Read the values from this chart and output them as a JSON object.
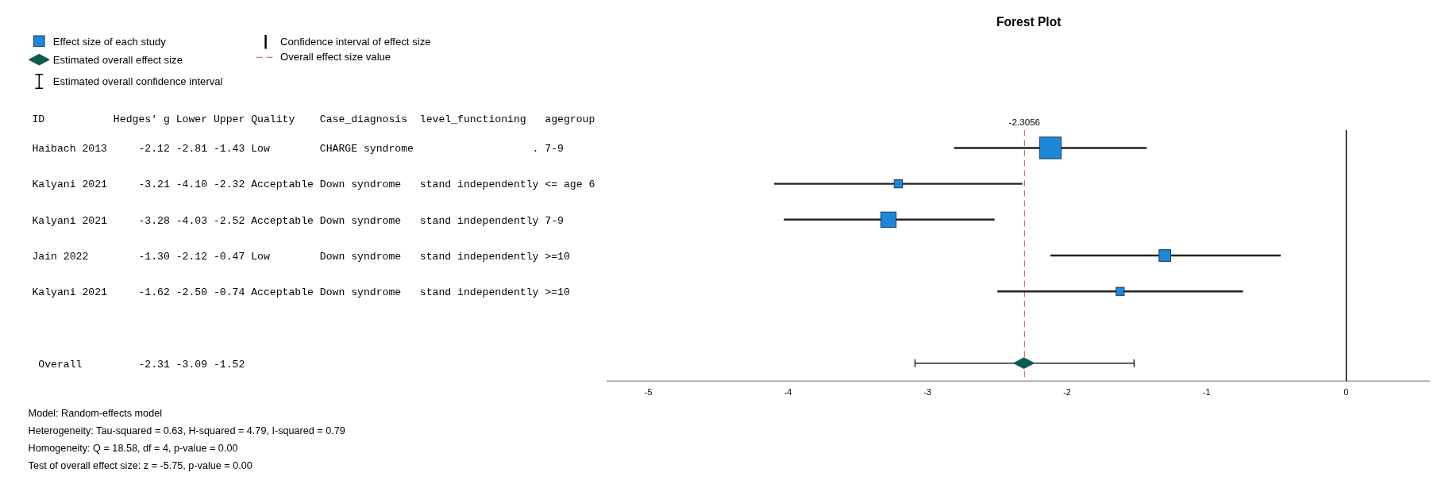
{
  "chart_data": [
    {
      "type": "other",
      "annotations": [
        "ID           Hedges' g Lower Upper Quality    Case_diagnosis  level_functioning   agegroup",
        "Haibach 2013     -2.12 -2.81 -1.43 Low        CHARGE syndrome                   . 7-9",
        "Kalyani 2021     -3.21 -4.10 -2.32 Acceptable Down syndrome   stand independently <= age 6",
        "Kalyani 2021     -3.28 -4.03 -2.52 Acceptable Down syndrome   stand independently 7-9",
        "Jain 2022        -1.30 -2.12 -0.47 Low        Down syndrome   stand independently >=10",
        "Kalyani 2021     -1.62 -2.50 -0.74 Acceptable Down syndrome   stand independently >=10",
        " Overall         -2.31 -3.09 -1.52",
        "Model: Random-effects model",
        "Heterogeneity: Tau-squared = 0.63, H-squared = 4.79, I-squared = 0.79",
        "Homogeneity: Q = 18.58, df = 4, p-value = 0.00",
        "Test of overall effect size: z = -5.75, p-value = 0.00"
      ]
    },
    {
      "type": "scatter",
      "title": "Forest Plot",
      "orientation": "horizontal",
      "legend": "top left",
      "categories": [
        null,
        null,
        null,
        null,
        null,
        null,
        null
      ],
      "xlim": [
        -5.3,
        0.6
      ],
      "xticks": [
        -5,
        -4,
        -3,
        -2,
        -1,
        0
      ],
      "series": [
        {
          "name": "Effect size of each study",
          "type": "bubble",
          "color": "#1e88d8",
          "marker": "square",
          "values": [
            -2.12,
            -3.21,
            -3.28,
            -1.3,
            -1.62,
            null,
            null
          ],
          "errors": [
            [
              -2.81,
              -1.43
            ],
            [
              -4.1,
              -2.32
            ],
            [
              -4.03,
              -2.52
            ],
            [
              -2.12,
              -0.47
            ],
            [
              -2.5,
              -0.74
            ],
            null,
            null
          ],
          "sizes": [
            1,
            0.14,
            0.5,
            0.29,
            0.14,
            null,
            null
          ]
        },
        {
          "name": "Estimated overall effect size",
          "color": "#0d5c4f",
          "marker": "diamond",
          "values": [
            null,
            null,
            null,
            null,
            null,
            null,
            -2.31
          ],
          "errors": [
            null,
            null,
            null,
            null,
            null,
            null,
            [
              -3.09,
              -1.52
            ]
          ]
        }
      ],
      "ref_lines": [
        {
          "axis": "x",
          "value": -2.3056,
          "label": "-2.3056",
          "color": "#c0504d",
          "line_style": "dashed"
        },
        {
          "axis": "x",
          "value": 0,
          "color": "#000000",
          "line_style": "solid"
        }
      ],
      "annotations": [
        "Confidence interval of effect size",
        "Overall effect size value",
        "Estimated overall confidence interval"
      ]
    }
  ]
}
